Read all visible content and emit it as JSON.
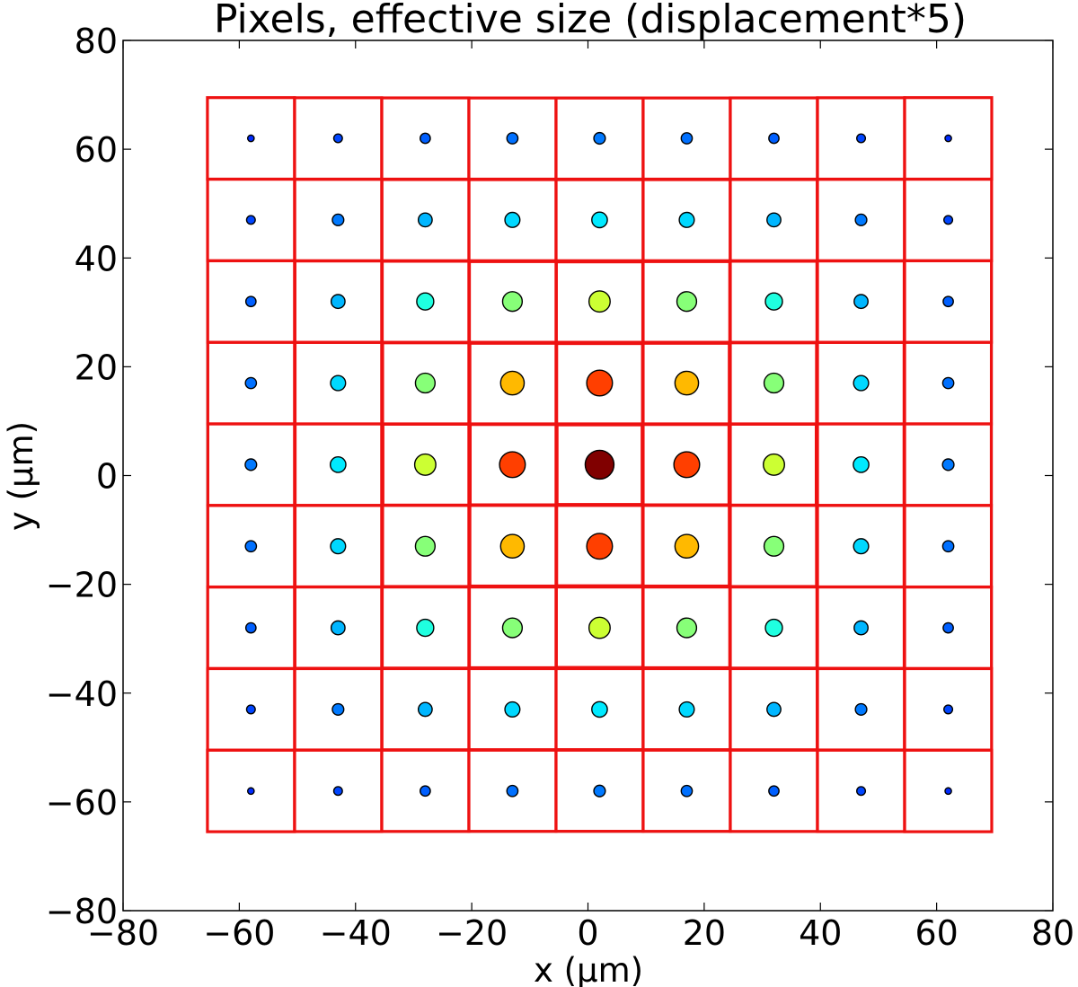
{
  "chart_data": {
    "type": "scatter",
    "title": "Pixels, effective size (displacement*5)",
    "xlabel": "x (μm)",
    "ylabel": "y (μm)",
    "xlim": [
      -80,
      80
    ],
    "ylim": [
      -80,
      80
    ],
    "x_ticks": [
      -80,
      -60,
      -40,
      -20,
      0,
      20,
      40,
      60,
      80
    ],
    "y_ticks": [
      -80,
      -60,
      -40,
      -20,
      0,
      20,
      40,
      60,
      80
    ],
    "x_tick_labels": [
      "−80",
      "−60",
      "−40",
      "−20",
      "0",
      "20",
      "40",
      "60",
      "80"
    ],
    "y_tick_labels": [
      "−80",
      "−60",
      "−40",
      "−20",
      "0",
      "20",
      "40",
      "60",
      "80"
    ],
    "grid": false,
    "pixel_grid": {
      "centers": [
        -58,
        -43,
        -28,
        -13,
        2,
        17,
        32,
        47,
        62
      ],
      "pitch": 15,
      "boundaries": [
        -65.5,
        -50.5,
        -35.5,
        -20.5,
        -5.5,
        9.5,
        24.5,
        39.5,
        54.5,
        69.5
      ],
      "regular_edge_color": "#000000",
      "effective_edge_color": "#ee1111",
      "displacement_scale": 5
    },
    "charge_levels": [
      [
        0.02,
        0.05,
        0.08,
        0.1,
        0.11,
        0.1,
        0.08,
        0.05,
        0.02
      ],
      [
        0.05,
        0.11,
        0.18,
        0.22,
        0.24,
        0.22,
        0.18,
        0.11,
        0.05
      ],
      [
        0.08,
        0.18,
        0.3,
        0.42,
        0.5,
        0.42,
        0.3,
        0.18,
        0.08
      ],
      [
        0.1,
        0.22,
        0.42,
        0.64,
        0.78,
        0.64,
        0.42,
        0.22,
        0.1
      ],
      [
        0.11,
        0.24,
        0.5,
        0.78,
        1.0,
        0.78,
        0.5,
        0.24,
        0.11
      ],
      [
        0.1,
        0.22,
        0.42,
        0.64,
        0.78,
        0.64,
        0.42,
        0.22,
        0.1
      ],
      [
        0.08,
        0.18,
        0.3,
        0.42,
        0.5,
        0.42,
        0.3,
        0.18,
        0.08
      ],
      [
        0.05,
        0.11,
        0.18,
        0.22,
        0.24,
        0.22,
        0.18,
        0.11,
        0.05
      ],
      [
        0.02,
        0.05,
        0.08,
        0.1,
        0.11,
        0.1,
        0.08,
        0.05,
        0.02
      ]
    ],
    "colormap": "jet",
    "charge_levels_note": "rows ordered top (y=62) to bottom (y=-58), columns left (x=-58) to right (x=62); estimated from marker size/color"
  }
}
